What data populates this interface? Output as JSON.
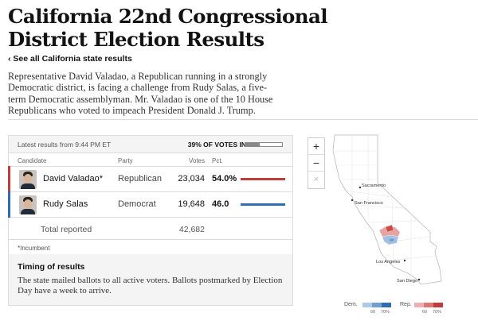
{
  "headline": "California 22nd Congressional District Election Results",
  "back_link": "‹ See all California state results",
  "intro": "Representative David Valadao, a Republican running in a strongly Democratic district, is facing a challenge from Rudy Salas, a five-term Democratic assemblyman. Mr. Valadao is one of the 10 House Republicans who voted to impeach President Donald J. Trump.",
  "results": {
    "updated": "Latest results from 9:44 PM ET",
    "pct_reporting": "39% OF VOTES IN",
    "pct_reporting_value": 39,
    "columns": {
      "candidate": "Candidate",
      "party": "Party",
      "votes": "Votes",
      "pct": "Pct."
    },
    "candidates": [
      {
        "name": "David Valadao*",
        "party": "Republican",
        "votes": "23,034",
        "pct": "54.0%",
        "pct_value": 54.0,
        "color": "#c23b3b"
      },
      {
        "name": "Rudy Salas",
        "party": "Democrat",
        "votes": "19,648",
        "pct": "46.0",
        "pct_value": 46.0,
        "color": "#2e6db4"
      }
    ],
    "total_label": "Total reported",
    "total_votes": "42,682",
    "incumbent_note": "*Incumbent",
    "timing_title": "Timing of results",
    "timing_text": "The state mailed ballots to all active voters. Ballots postmarked by Election Day have a week to arrive."
  },
  "map": {
    "zoom_in": "+",
    "zoom_out": "−",
    "reset": "×",
    "cities": [
      "Sacramento",
      "San Francisco",
      "Los Angeles",
      "San Diego"
    ]
  },
  "legend": {
    "dem_label": "Dem.",
    "rep_label": "Rep.",
    "ticks": [
      "60",
      "70%"
    ],
    "dem_colors": [
      "#aec9e6",
      "#6f9fd0",
      "#2e6db4"
    ],
    "rep_colors": [
      "#eeb0ae",
      "#dd7672",
      "#c23b3b"
    ]
  }
}
